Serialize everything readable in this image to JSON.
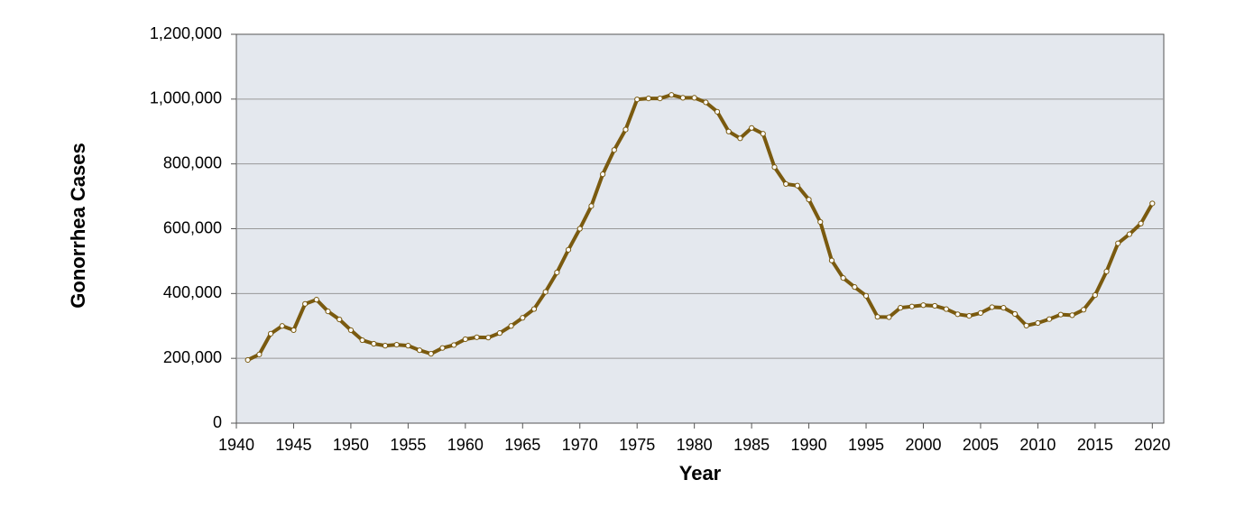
{
  "chart_data": {
    "type": "line",
    "x_label": "Year",
    "y_label": "Gonorrhea Cases",
    "x": [
      1941,
      1942,
      1943,
      1944,
      1945,
      1946,
      1947,
      1948,
      1949,
      1950,
      1951,
      1952,
      1953,
      1954,
      1955,
      1956,
      1957,
      1958,
      1959,
      1960,
      1961,
      1962,
      1963,
      1964,
      1965,
      1966,
      1967,
      1968,
      1969,
      1970,
      1971,
      1972,
      1973,
      1974,
      1975,
      1976,
      1977,
      1978,
      1979,
      1980,
      1981,
      1982,
      1983,
      1984,
      1985,
      1986,
      1987,
      1988,
      1989,
      1990,
      1991,
      1992,
      1993,
      1994,
      1995,
      1996,
      1997,
      1998,
      1999,
      2000,
      2001,
      2002,
      2003,
      2004,
      2005,
      2006,
      2007,
      2008,
      2009,
      2010,
      2011,
      2012,
      2013,
      2014,
      2015,
      2016,
      2017,
      2018,
      2019,
      2020
    ],
    "series": [
      {
        "color": "#7a5a0f",
        "values": [
          195000,
          212000,
          276000,
          300000,
          287000,
          368000,
          381000,
          345000,
          320000,
          287000,
          256000,
          245000,
          239000,
          242000,
          239000,
          225000,
          214000,
          232000,
          241000,
          259000,
          265000,
          264000,
          278000,
          300000,
          325000,
          352000,
          405000,
          465000,
          535000,
          600000,
          670000,
          768000,
          843000,
          906000,
          999000,
          1002000,
          1002000,
          1013000,
          1004000,
          1004000,
          990000,
          961000,
          900000,
          879000,
          911000,
          893000,
          790000,
          738000,
          733000,
          690000,
          621000,
          502000,
          448000,
          420000,
          393000,
          328000,
          327000,
          356000,
          360000,
          364000,
          362000,
          352000,
          336000,
          331000,
          340000,
          358000,
          356000,
          337000,
          301000,
          309000,
          321000,
          335000,
          333000,
          350000,
          395000,
          468000,
          555000,
          583000,
          616000,
          678000
        ]
      }
    ],
    "xlim": [
      1940,
      2021
    ],
    "xticks": [
      1940,
      1945,
      1950,
      1955,
      1960,
      1965,
      1970,
      1975,
      1980,
      1985,
      1990,
      1995,
      2000,
      2005,
      2010,
      2015,
      2020
    ],
    "ylim": [
      0,
      1200000
    ],
    "yticks": [
      0,
      {
        "value": 200000,
        "label": "200,000"
      },
      {
        "value": 400000,
        "label": "400,000"
      },
      {
        "value": 600000,
        "label": "600,000"
      },
      {
        "value": 800000,
        "label": "800,000"
      },
      {
        "value": 1000000,
        "label": "1,000,000"
      },
      {
        "value": 1200000,
        "label": "1,200,000"
      }
    ],
    "grid": true
  }
}
